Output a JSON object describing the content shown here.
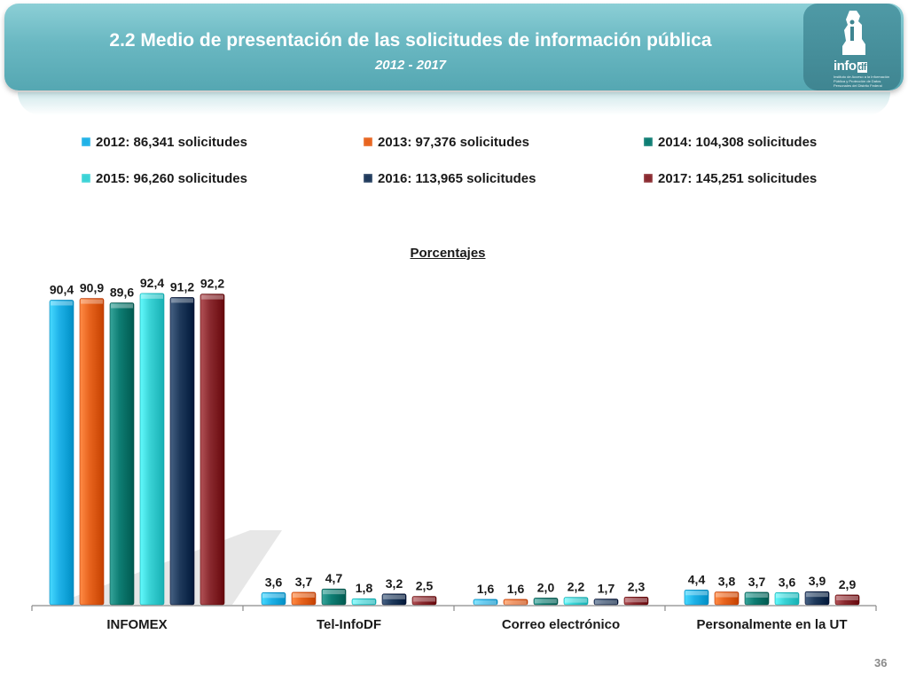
{
  "header": {
    "title": "2.2 Medio de presentación de las solicitudes de información pública",
    "subtitle": "2012 - 2017"
  },
  "logo": {
    "name": "info",
    "suffix": "df",
    "caption": "Instituto de Acceso a la Información Pública y Protección de Datos Personales del Distrito Federal"
  },
  "page_number": "36",
  "colors": {
    "header": "#6ab8c2",
    "2012": "#1fb2e8",
    "2013": "#e8641e",
    "2014": "#0e7d73",
    "2015": "#3ad3d6",
    "2016": "#1f3a5c",
    "2017": "#8a2a2f"
  },
  "chart_data": {
    "type": "bar",
    "title": "Porcentajes",
    "categories": [
      "INFOMEX",
      "Tel-InfoDF",
      "Correo electrónico",
      "Personalmente en la UT"
    ],
    "series": [
      {
        "name": "2012: 86,341 solicitudes",
        "values": [
          90.4,
          3.6,
          1.6,
          4.4
        ],
        "labels": [
          "90,4",
          "3,6",
          "1,6",
          "4,4"
        ]
      },
      {
        "name": "2013: 97,376 solicitudes",
        "values": [
          90.9,
          3.7,
          1.6,
          3.8
        ],
        "labels": [
          "90,9",
          "3,7",
          "1,6",
          "3,8"
        ]
      },
      {
        "name": "2014: 104,308 solicitudes",
        "values": [
          89.6,
          4.7,
          2.0,
          3.7
        ],
        "labels": [
          "89,6",
          "4,7",
          "2,0",
          "3,7"
        ]
      },
      {
        "name": "2015: 96,260 solicitudes",
        "values": [
          92.4,
          1.8,
          2.2,
          3.6
        ],
        "labels": [
          "92,4",
          "1,8",
          "2,2",
          "3,6"
        ]
      },
      {
        "name": "2016: 113,965 solicitudes",
        "values": [
          91.2,
          3.2,
          1.7,
          3.9
        ],
        "labels": [
          "91,2",
          "3,2",
          "1,7",
          "3,9"
        ]
      },
      {
        "name": "2017: 145,251 solicitudes",
        "values": [
          92.2,
          2.5,
          2.3,
          2.9
        ],
        "labels": [
          "92,2",
          "2,5",
          "2,3",
          "2,9"
        ]
      }
    ],
    "ylim": [
      0,
      100
    ],
    "legend_position": "top",
    "grid": false
  }
}
